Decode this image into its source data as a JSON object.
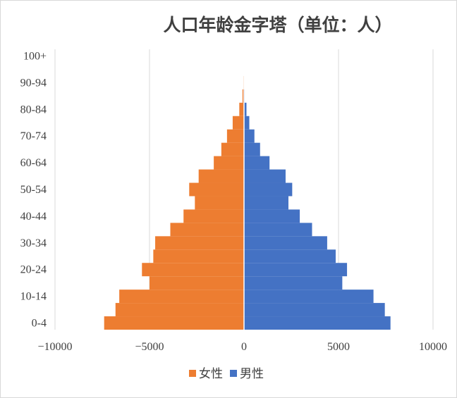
{
  "chart_data": {
    "type": "bar",
    "orientation": "horizontal",
    "title": "人口年龄金字塔（单位：人）",
    "categories": [
      "0-4",
      "5-9",
      "10-14",
      "15-19",
      "20-24",
      "25-29",
      "30-34",
      "35-39",
      "40-44",
      "45-49",
      "50-54",
      "55-59",
      "60-64",
      "65-69",
      "70-74",
      "75-79",
      "80-84",
      "85-89",
      "90-94",
      "95-99",
      "100+"
    ],
    "y_tick_labels": [
      "0-4",
      "10-14",
      "20-24",
      "30-34",
      "40-44",
      "50-54",
      "60-64",
      "70-74",
      "80-84",
      "90-94",
      "100+"
    ],
    "x_tick_labels": [
      "−10000",
      "−5000",
      "0",
      "5000",
      "10000"
    ],
    "xlim": [
      -10000,
      10000
    ],
    "series": [
      {
        "name": "女性",
        "color": "#ED7D31",
        "values": [
          -7400,
          -6800,
          -6600,
          -5000,
          -5400,
          -4800,
          -4700,
          -3900,
          -3200,
          -2600,
          -2900,
          -2400,
          -1600,
          -1200,
          -900,
          -600,
          -250,
          -80,
          -30,
          -10,
          -5
        ]
      },
      {
        "name": "男性",
        "color": "#4472C4",
        "values": [
          7750,
          7450,
          6850,
          5200,
          5450,
          4850,
          4400,
          3600,
          2950,
          2350,
          2550,
          2200,
          1350,
          850,
          550,
          280,
          130,
          30,
          12,
          5,
          2
        ]
      }
    ],
    "grid": true,
    "legend": "bottom"
  }
}
